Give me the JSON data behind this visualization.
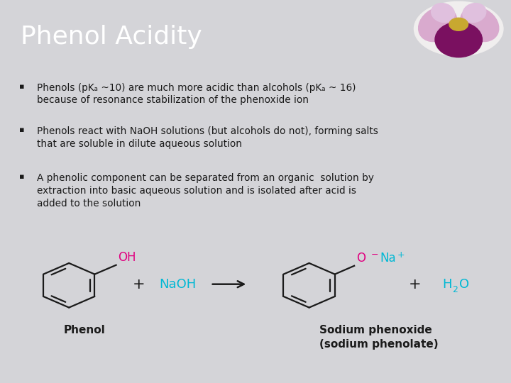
{
  "title": "Phenol Acidity",
  "title_color": "#ffffff",
  "title_bg_color": "#6b7080",
  "body_bg_color": "#d4d4d8",
  "bullet_text_color": "#1a1a1a",
  "bullet_font_size": 9.8,
  "title_font_size": 26,
  "bullets": [
    "Phenols (pKₐ ~10) are much more acidic than alcohols (pKₐ ~ 16)\nbecause of resonance stabilization of the phenoxide ion",
    "Phenols react with NaOH solutions (but alcohols do not), forming salts\nthat are soluble in dilute aqueous solution",
    "A phenolic component can be separated from an organic  solution by\nextraction into basic aqueous solution and is isolated after acid is\nadded to the solution"
  ],
  "cyan_color": "#00b8d4",
  "pink_color": "#e0007f",
  "dark_color": "#1a1a1a",
  "phenol_label": "Phenol",
  "product_label": "Sodium phenoxide\n(sodium phenolate)"
}
